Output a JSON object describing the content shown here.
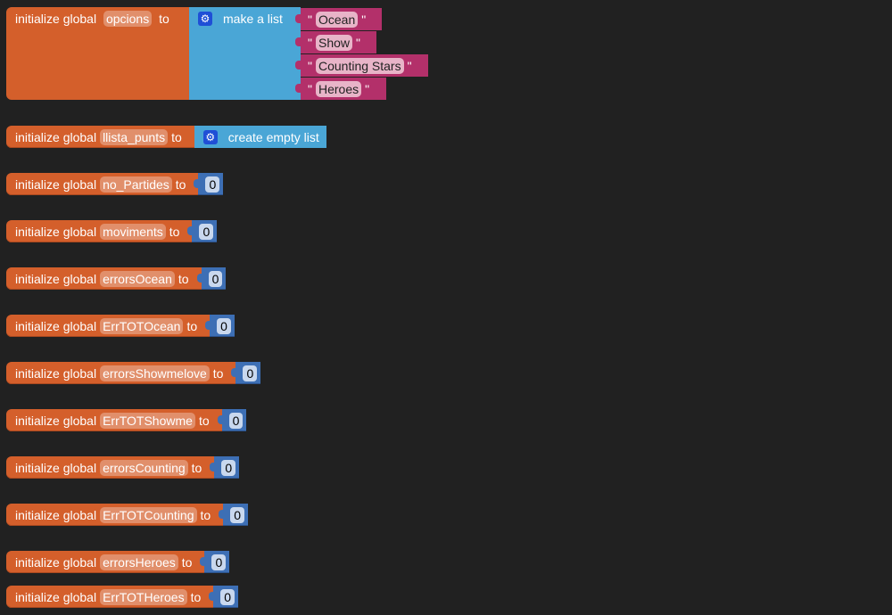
{
  "labels": {
    "initialize": "initialize global",
    "to": "to",
    "make_list": "make a list",
    "create_empty": "create empty list",
    "quote": "\""
  },
  "opcions": {
    "name": "opcions",
    "items": [
      "Ocean",
      "Show",
      "Counting Stars",
      "Heroes"
    ]
  },
  "llista": {
    "name": "llista_punts"
  },
  "vars": [
    {
      "name": "no_Partides",
      "value": "0"
    },
    {
      "name": "moviments",
      "value": "0"
    },
    {
      "name": "errorsOcean",
      "value": "0"
    },
    {
      "name": "ErrTOTOcean",
      "value": "0"
    },
    {
      "name": "errorsShowmelove",
      "value": "0"
    },
    {
      "name": "ErrTOTShowme",
      "value": "0"
    },
    {
      "name": "errorsCounting",
      "value": "0"
    },
    {
      "name": "ErrTOTCounting",
      "value": "0"
    },
    {
      "name": "errorsHeroes",
      "value": "0"
    },
    {
      "name": "ErrTOTHeroes",
      "value": "0"
    }
  ]
}
